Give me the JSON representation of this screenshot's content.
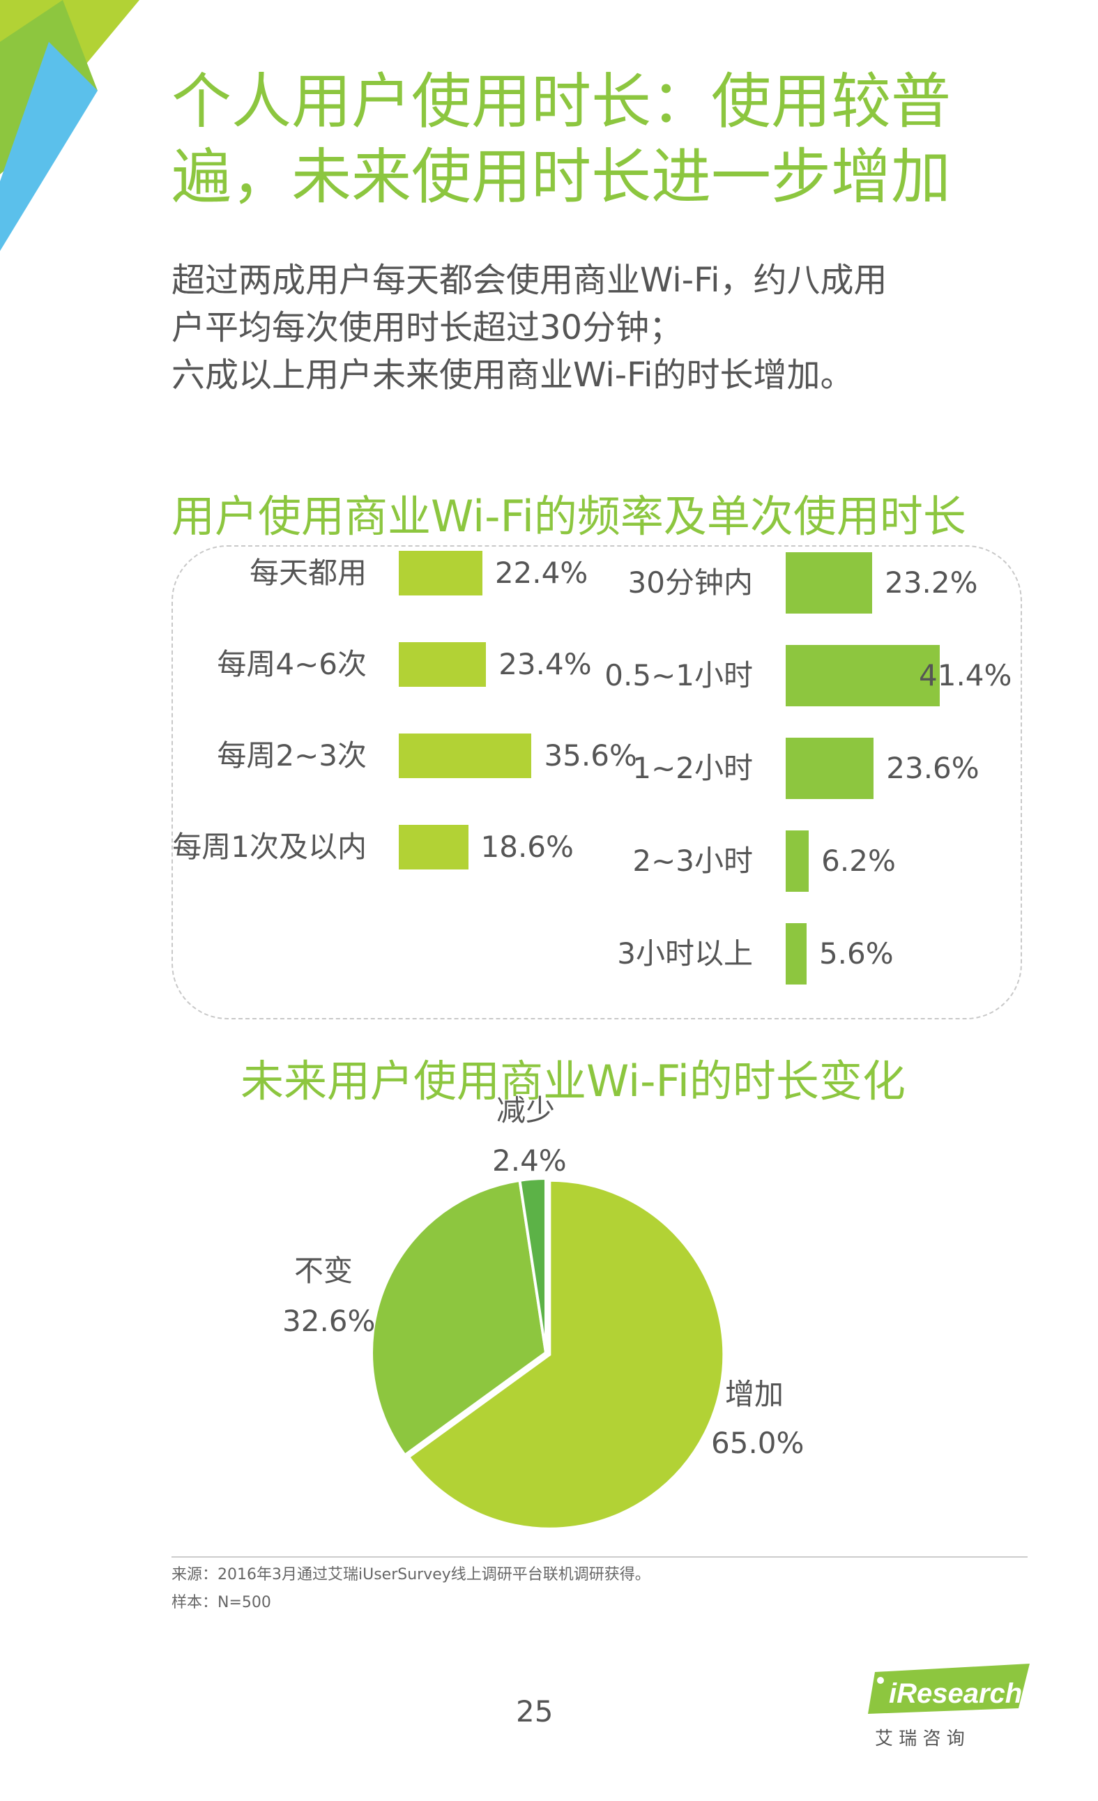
{
  "colors": {
    "title_green": "#8cc63f",
    "lime": "#b2d235",
    "green": "#8dc63f",
    "dark_green": "#5cb247",
    "blue": "#5bc0eb"
  },
  "title_lines": [
    "个人用户使用时长：使用较普",
    "遍，未来使用时长进一步增加"
  ],
  "summary_lines": [
    "超过两成用户每天都会使用商业Wi-Fi，约八成用",
    "户平均每次使用时长超过30分钟；",
    "六成以上用户未来使用商业Wi-Fi的时长增加。"
  ],
  "chart_data": [
    {
      "type": "bar",
      "title": "用户使用商业Wi-Fi的频率及单次使用时长",
      "series": [
        {
          "categories": [
            "每天都用",
            "每周4~6次",
            "每周2~3次",
            "每周1次及以内"
          ],
          "values": [
            22.4,
            23.4,
            35.6,
            18.6
          ],
          "labels": [
            "22.4%",
            "23.4%",
            "35.6%",
            "18.6%"
          ],
          "color": "#b2d235"
        },
        {
          "categories": [
            "30分钟内",
            "0.5~1小时",
            "1~2小时",
            "2~3小时",
            "3小时以上"
          ],
          "values": [
            23.2,
            41.4,
            23.6,
            6.2,
            5.6
          ],
          "labels": [
            "23.2%",
            "41.4%",
            "23.6%",
            "6.2%",
            "5.6%"
          ],
          "color": "#8dc63f"
        }
      ]
    },
    {
      "type": "pie",
      "title": "未来用户使用商业Wi-Fi的时长变化",
      "slices": [
        {
          "name": "增加",
          "value": 65.0,
          "label": "65.0%",
          "color": "#b2d235"
        },
        {
          "name": "不变",
          "value": 32.6,
          "label": "32.6%",
          "color": "#8dc63f"
        },
        {
          "name": "减少",
          "value": 2.4,
          "label": "2.4%",
          "color": "#5cb247"
        }
      ]
    }
  ],
  "footer": {
    "source": "来源：2016年3月通过艾瑞iUserSurvey线上调研平台联机调研获得。",
    "sample": "样本：N=500",
    "page_number": "25"
  },
  "logo": {
    "brand": "iResearch",
    "cn": "艾 瑞 咨 询"
  }
}
